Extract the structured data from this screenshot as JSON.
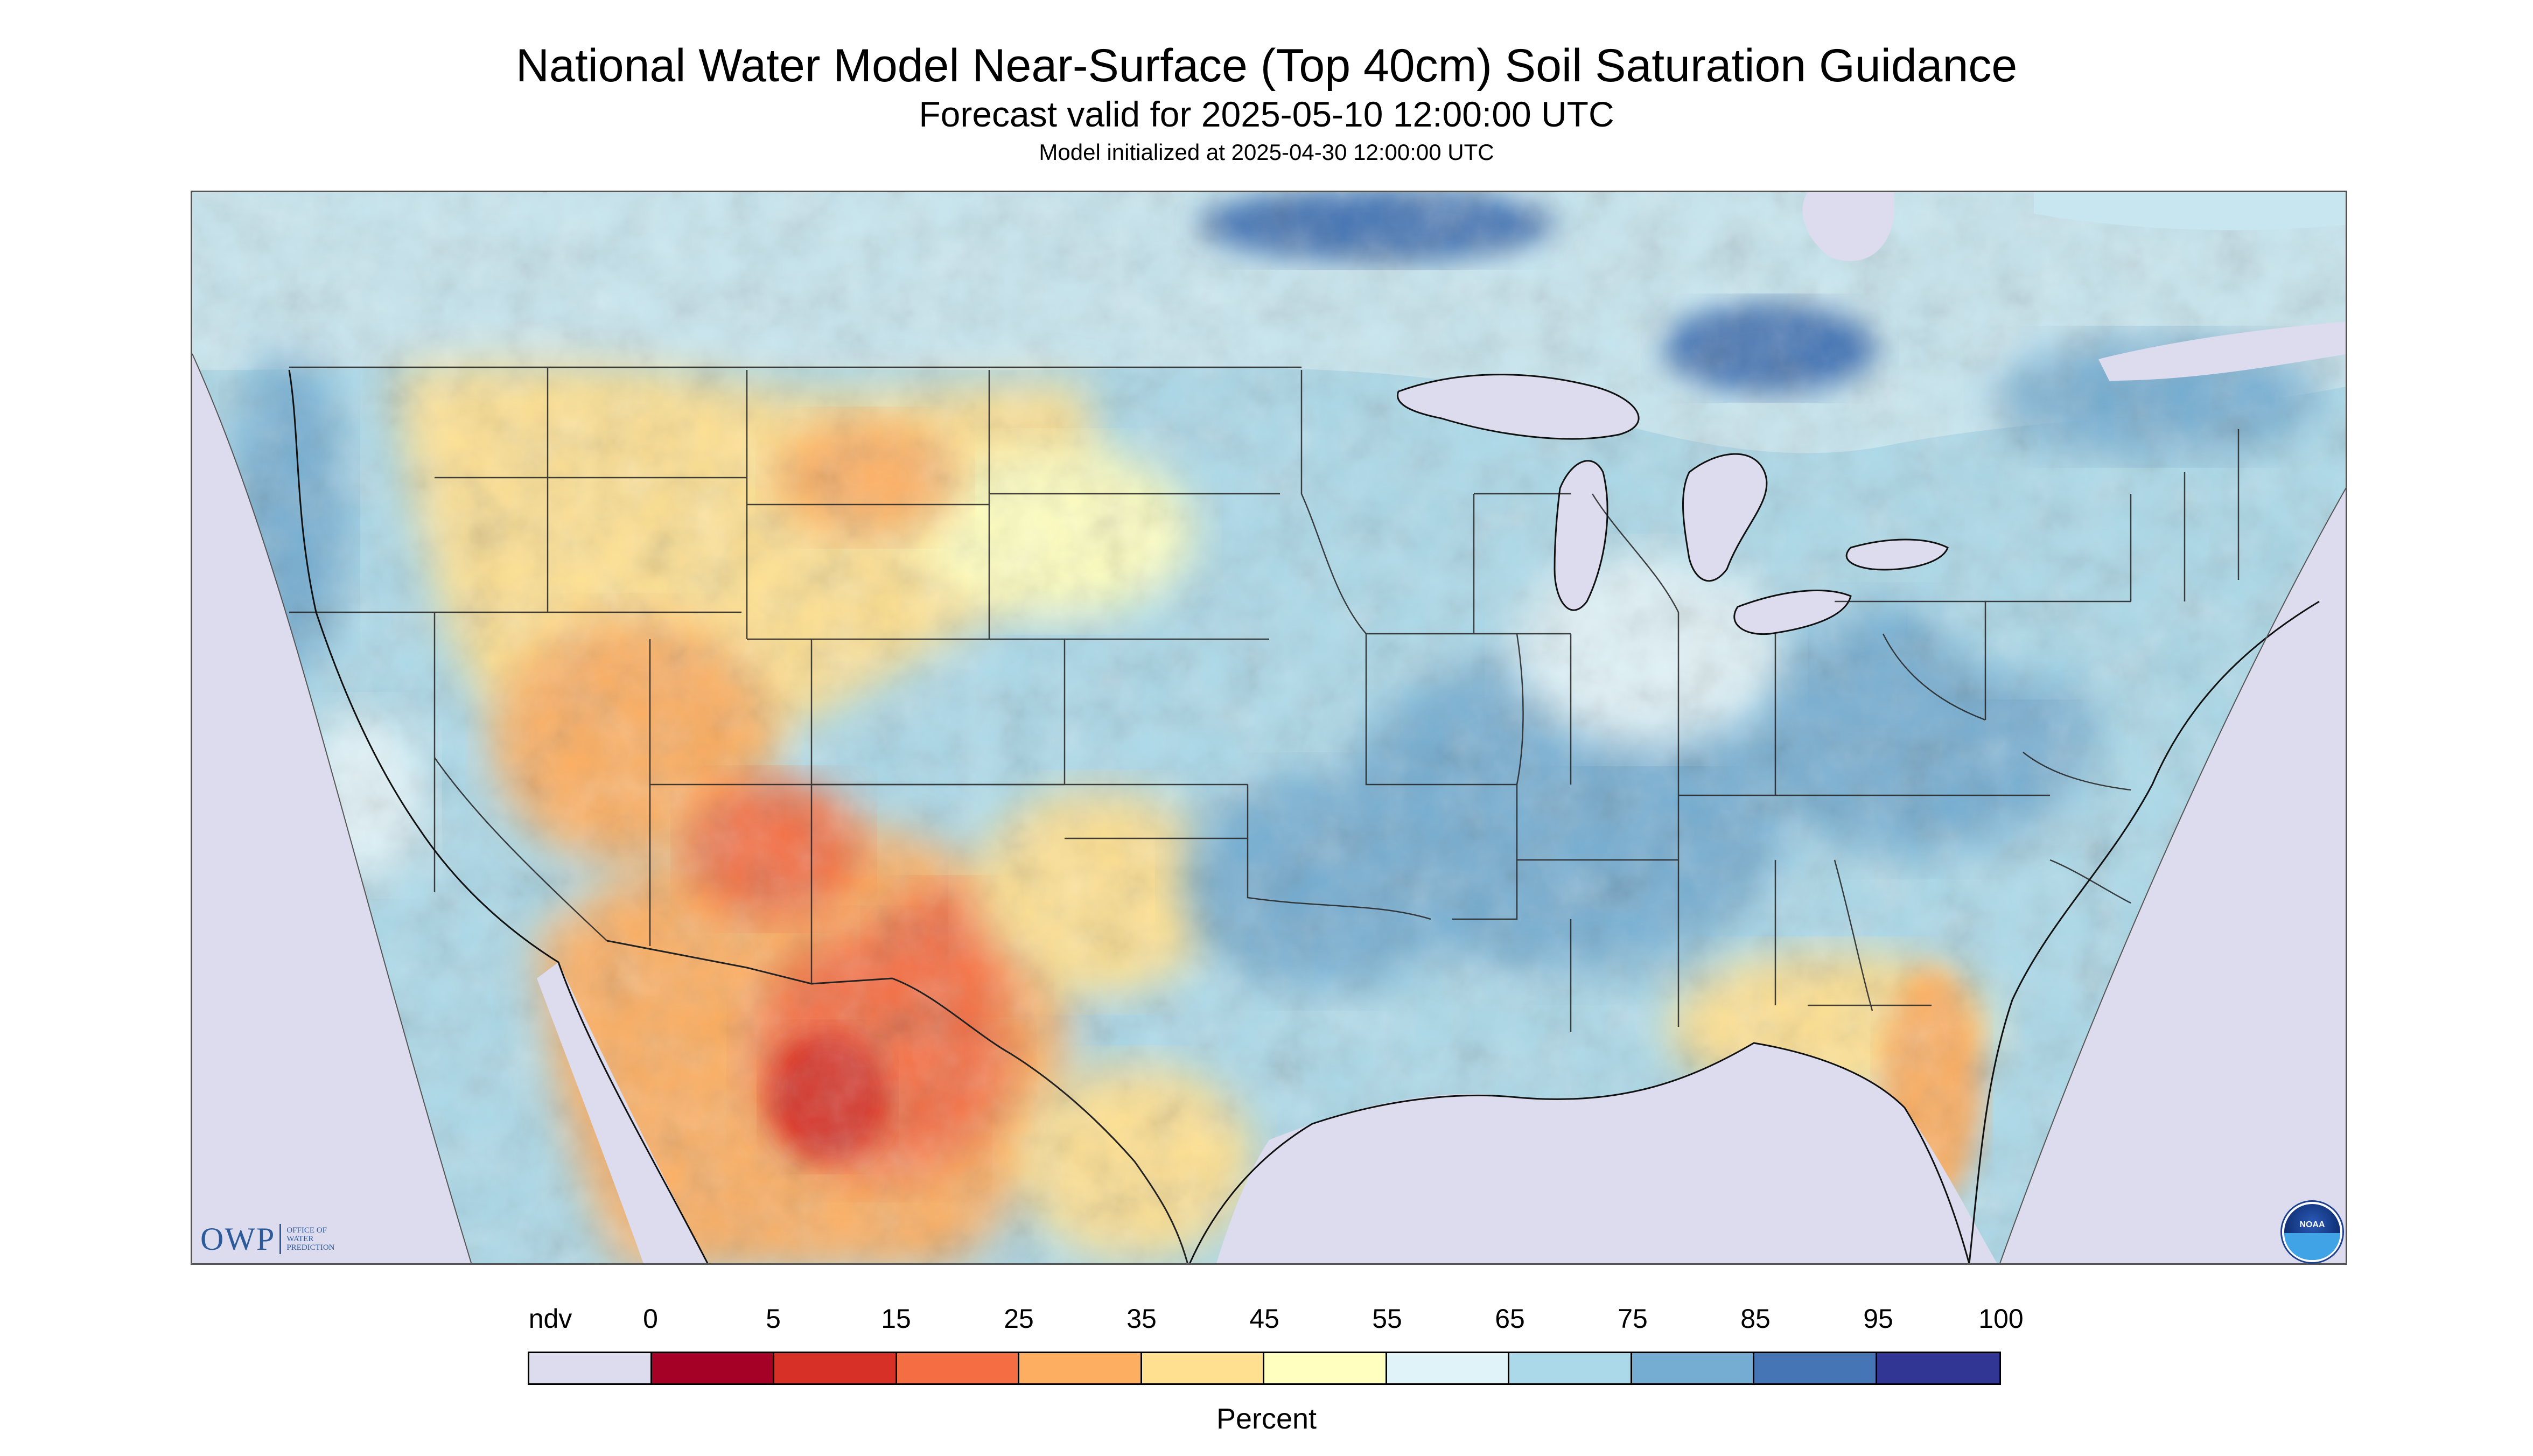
{
  "header": {
    "title": "National Water Model Near-Surface (Top 40cm) Soil Saturation Guidance",
    "subtitle": "Forecast valid for 2025-05-10 12:00:00 UTC",
    "init": "Model initialized at 2025-04-30 12:00:00 UTC"
  },
  "map": {
    "nodata_color": "#dcdcee",
    "palette": [
      "#dcdcee",
      "#a50026",
      "#d73027",
      "#f46d43",
      "#fdae61",
      "#fee090",
      "#ffffbf",
      "#e0f3f8",
      "#abd9e9",
      "#74add1",
      "#4575b4",
      "#313695"
    ]
  },
  "logos": {
    "owp_main": "OWP",
    "owp_line1": "OFFICE OF",
    "owp_line2": "WATER",
    "owp_line3": "PREDICTION",
    "noaa": "NOAA"
  },
  "legend": {
    "labels": [
      "ndv",
      "0",
      "5",
      "15",
      "25",
      "35",
      "45",
      "55",
      "65",
      "75",
      "85",
      "95",
      "100"
    ],
    "colors": [
      "#dcdcee",
      "#a50026",
      "#d73027",
      "#f46d43",
      "#fdae61",
      "#fee090",
      "#ffffbf",
      "#e0f3f8",
      "#abd9e9",
      "#74add1",
      "#4575b4",
      "#313695"
    ],
    "unit": "Percent"
  }
}
